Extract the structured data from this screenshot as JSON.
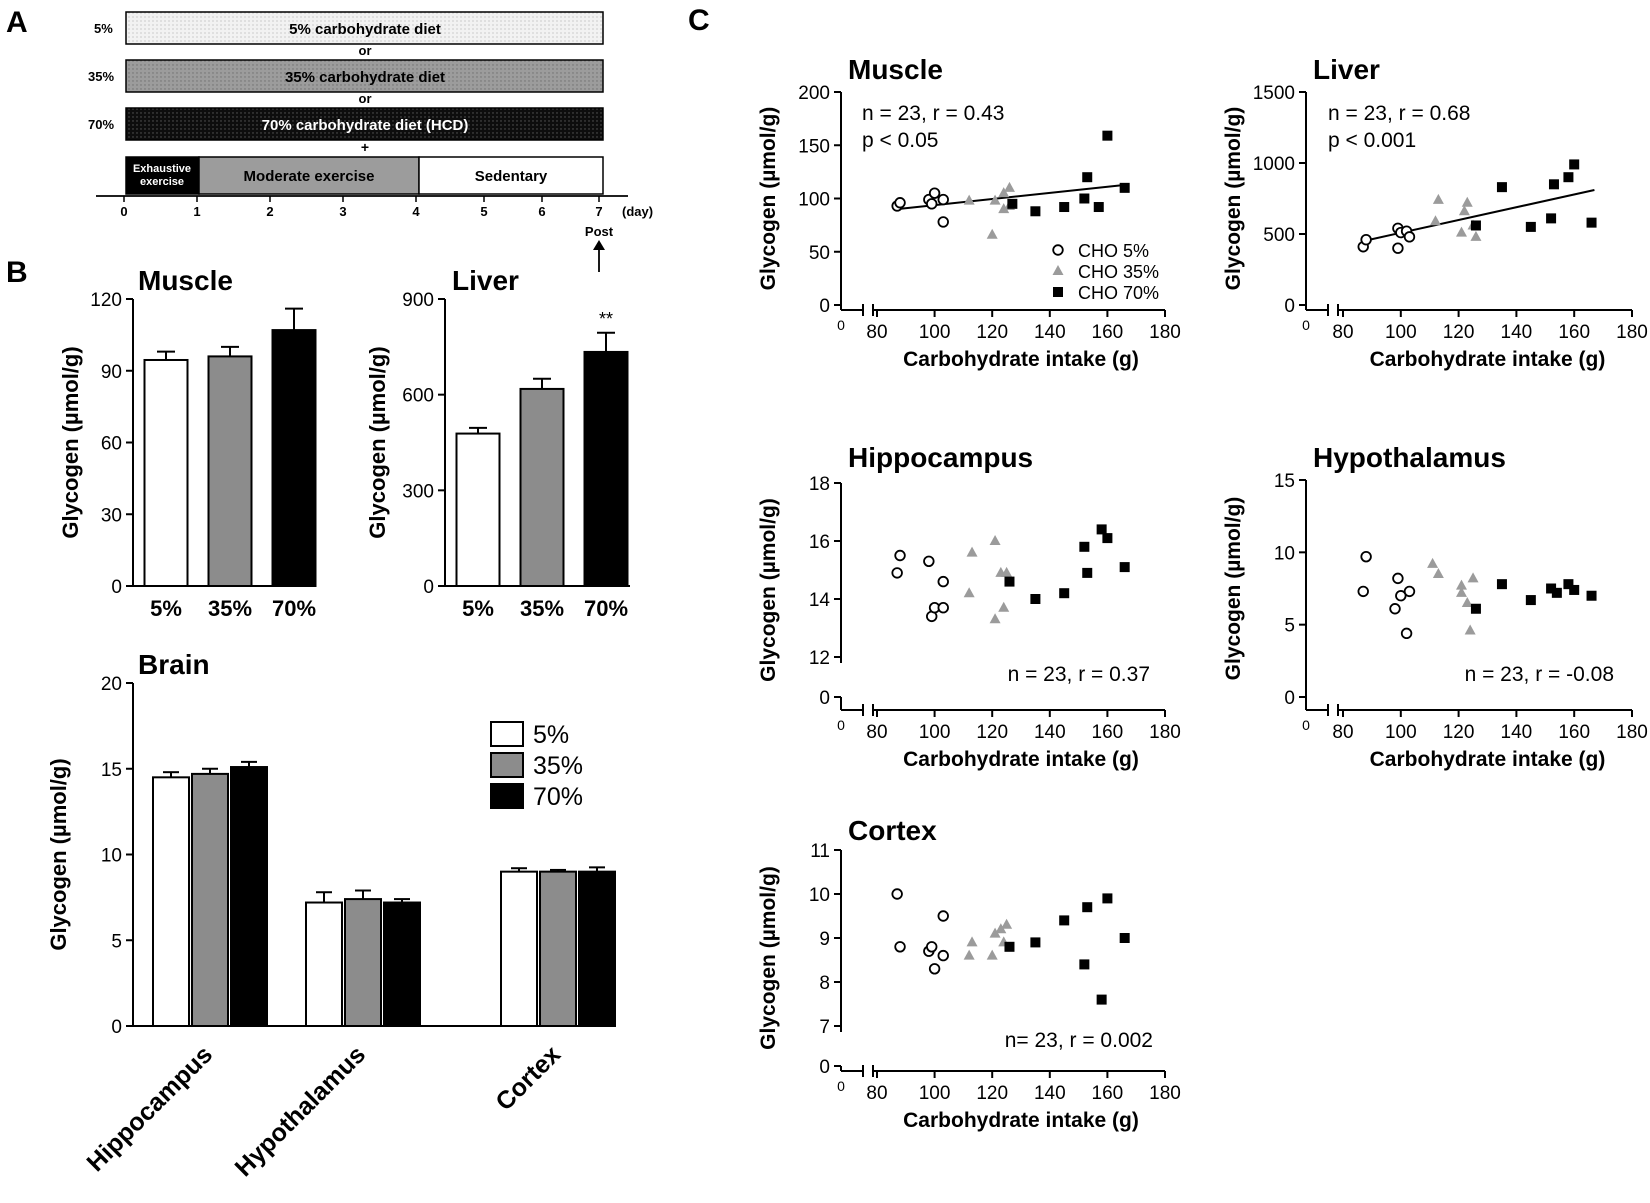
{
  "panel_labels": {
    "a": "A",
    "b": "B",
    "c": "C"
  },
  "colors": {
    "five": "#ffffff",
    "thirtyfive": "#8c8c8c",
    "seventy": "#000000",
    "light_fill": "#eeeeee",
    "mid_fill": "#999999",
    "dark_fill": "#1a1a1a",
    "grey_mark": "#9b9b9b"
  },
  "protocol": {
    "diets": [
      {
        "tag": "5%",
        "label": "5% carbohydrate diet"
      },
      {
        "tag": "35%",
        "label": "35% carbohydrate diet"
      },
      {
        "tag": "70%",
        "label": "70% carbohydrate diet (HCD)"
      }
    ],
    "or_label": "or",
    "plus_label": "+",
    "phases": [
      "Exhaustive exercise",
      "Moderate exercise",
      "Sedentary"
    ],
    "day_ticks": [
      "0",
      "1",
      "2",
      "3",
      "4",
      "5",
      "6",
      "7"
    ],
    "day_unit": "(day)",
    "post_label": "Post"
  },
  "chart_data": [
    {
      "id": "b_muscle",
      "type": "bar",
      "title": "Muscle",
      "ylabel": "Glycogen (µmol/g)",
      "categories": [
        "5%",
        "35%",
        "70%"
      ],
      "values": [
        94.5,
        96,
        107
      ],
      "errors": [
        3.5,
        4,
        9
      ],
      "ylim": [
        0,
        120
      ],
      "yticks": [
        "0",
        "30",
        "60",
        "90",
        "120"
      ],
      "annotation": ""
    },
    {
      "id": "b_liver",
      "type": "bar",
      "title": "Liver",
      "ylabel": "Glycogen (µmol/g)",
      "categories": [
        "5%",
        "35%",
        "70%"
      ],
      "values": [
        478,
        618,
        734
      ],
      "errors": [
        18,
        32,
        60
      ],
      "ylim": [
        0,
        900
      ],
      "yticks": [
        "0",
        "300",
        "600",
        "900"
      ],
      "annotation": "**"
    },
    {
      "id": "b_brain",
      "type": "bar",
      "title": "Brain",
      "ylabel": "Glycogen (µmol/g)",
      "categories": [
        "Hippocampus",
        "Hypothalamus",
        "Cortex"
      ],
      "series": [
        {
          "name": "5%",
          "values": [
            14.5,
            7.2,
            9.0
          ],
          "errors": [
            0.3,
            0.6,
            0.2
          ]
        },
        {
          "name": "35%",
          "values": [
            14.7,
            7.4,
            9.0
          ],
          "errors": [
            0.3,
            0.5,
            0.1
          ]
        },
        {
          "name": "70%",
          "values": [
            15.1,
            7.2,
            9.0
          ],
          "errors": [
            0.3,
            0.2,
            0.25
          ]
        }
      ],
      "ylim": [
        0,
        20
      ],
      "yticks": [
        "0",
        "5",
        "10",
        "15",
        "20"
      ],
      "legend": [
        "5%",
        "35%",
        "70%"
      ]
    },
    {
      "id": "c_muscle",
      "type": "scatter",
      "title": "Muscle",
      "xlabel": "Carbohydrate intake (g)",
      "ylabel": "Glycogen (µmol/g)",
      "xlim": [
        80,
        180
      ],
      "xticks": [
        "80",
        "100",
        "120",
        "140",
        "160",
        "180"
      ],
      "ylim": [
        0,
        200
      ],
      "yticks": [
        "0",
        "50",
        "100",
        "150",
        "200"
      ],
      "stats": [
        "n = 23, r = 0.43",
        "p < 0.05"
      ],
      "fit": [
        [
          87,
          90
        ],
        [
          167,
          113
        ]
      ],
      "legend": [
        "CHO 5%",
        "CHO 35%",
        "CHO 70%"
      ],
      "series": [
        {
          "name": "CHO 5%",
          "x": [
            87,
            88,
            98,
            99,
            100,
            103,
            103
          ],
          "y": [
            93,
            96,
            99,
            95,
            105,
            78,
            99
          ]
        },
        {
          "name": "CHO 35%",
          "x": [
            112,
            120,
            121,
            124,
            124,
            126,
            126
          ],
          "y": [
            98,
            66,
            98,
            90,
            105,
            93,
            110
          ]
        },
        {
          "name": "CHO 70%",
          "x": [
            127,
            135,
            145,
            152,
            153,
            157,
            160,
            166
          ],
          "y": [
            95,
            88,
            92,
            100,
            120,
            92,
            159,
            110
          ]
        }
      ]
    },
    {
      "id": "c_liver",
      "type": "scatter",
      "title": "Liver",
      "xlabel": "Carbohydrate intake (g)",
      "ylabel": "Glycogen (µmol/g)",
      "xlim": [
        80,
        180
      ],
      "xticks": [
        "80",
        "100",
        "120",
        "140",
        "160",
        "180"
      ],
      "ylim": [
        0,
        1500
      ],
      "yticks": [
        "0",
        "500",
        "1000",
        "1500"
      ],
      "stats": [
        "n = 23, r = 0.68",
        "p < 0.001"
      ],
      "fit": [
        [
          87,
          450
        ],
        [
          167,
          810
        ]
      ],
      "series": [
        {
          "name": "CHO 5%",
          "x": [
            87,
            88,
            99,
            99,
            100,
            102,
            103
          ],
          "y": [
            410,
            460,
            400,
            540,
            510,
            520,
            480
          ]
        },
        {
          "name": "CHO 35%",
          "x": [
            112,
            113,
            121,
            122,
            123,
            125,
            126
          ],
          "y": [
            590,
            740,
            510,
            660,
            720,
            560,
            480
          ]
        },
        {
          "name": "CHO 70%",
          "x": [
            126,
            135,
            145,
            152,
            153,
            158,
            160,
            166
          ],
          "y": [
            560,
            830,
            550,
            610,
            850,
            900,
            990,
            580
          ]
        }
      ]
    },
    {
      "id": "c_hippocampus",
      "type": "scatter",
      "title": "Hippocampus",
      "xlabel": "Carbohydrate intake (g)",
      "ylabel": "Glycogen (µmol/g)",
      "xlim": [
        80,
        180
      ],
      "xticks": [
        "80",
        "100",
        "120",
        "140",
        "160",
        "180"
      ],
      "ylim": [
        12,
        18
      ],
      "yticks": [
        "12",
        "14",
        "16",
        "18"
      ],
      "zero_label": "0",
      "stats": [
        "n = 23, r = 0.37"
      ],
      "series": [
        {
          "name": "CHO 5%",
          "x": [
            87,
            88,
            98,
            99,
            100,
            103,
            103
          ],
          "y": [
            14.9,
            15.5,
            15.3,
            13.4,
            13.7,
            14.6,
            13.7
          ]
        },
        {
          "name": "CHO 35%",
          "x": [
            112,
            113,
            121,
            121,
            123,
            124,
            125
          ],
          "y": [
            14.2,
            15.6,
            13.3,
            16.0,
            14.9,
            13.7,
            14.9
          ]
        },
        {
          "name": "CHO 70%",
          "x": [
            126,
            135,
            145,
            152,
            153,
            158,
            160,
            166
          ],
          "y": [
            14.6,
            14.0,
            14.2,
            15.8,
            14.9,
            16.4,
            16.1,
            15.1
          ]
        }
      ]
    },
    {
      "id": "c_hypothalamus",
      "type": "scatter",
      "title": "Hypothalamus",
      "xlabel": "Carbohydrate intake (g)",
      "ylabel": "Glycogen (µmol/g)",
      "xlim": [
        80,
        180
      ],
      "xticks": [
        "80",
        "100",
        "120",
        "140",
        "160",
        "180"
      ],
      "ylim": [
        0,
        15
      ],
      "yticks": [
        "0",
        "5",
        "10",
        "15"
      ],
      "stats": [
        "n = 23, r = -0.08"
      ],
      "series": [
        {
          "name": "CHO 5%",
          "x": [
            87,
            88,
            98,
            99,
            100,
            102,
            103
          ],
          "y": [
            7.3,
            9.7,
            6.1,
            8.2,
            7.0,
            4.4,
            7.3
          ]
        },
        {
          "name": "CHO 35%",
          "x": [
            111,
            113,
            121,
            121,
            123,
            124,
            125
          ],
          "y": [
            9.2,
            8.5,
            7.2,
            7.7,
            6.5,
            4.6,
            8.2
          ]
        },
        {
          "name": "CHO 70%",
          "x": [
            126,
            135,
            145,
            152,
            154,
            158,
            160,
            166
          ],
          "y": [
            6.1,
            7.8,
            6.7,
            7.5,
            7.2,
            7.8,
            7.4,
            7.0
          ]
        }
      ]
    },
    {
      "id": "c_cortex",
      "type": "scatter",
      "title": "Cortex",
      "xlabel": "Carbohydrate intake (g)",
      "ylabel": "Glycogen (µmol/g)",
      "xlim": [
        80,
        180
      ],
      "xticks": [
        "80",
        "100",
        "120",
        "140",
        "160",
        "180"
      ],
      "ylim": [
        7,
        11
      ],
      "yticks": [
        "7",
        "8",
        "9",
        "10",
        "11"
      ],
      "zero_label": "0",
      "stats": [
        "n= 23, r = 0.002"
      ],
      "series": [
        {
          "name": "CHO 5%",
          "x": [
            87,
            88,
            98,
            99,
            100,
            103,
            103
          ],
          "y": [
            10.0,
            8.8,
            8.7,
            8.8,
            8.3,
            9.5,
            8.6
          ]
        },
        {
          "name": "CHO 35%",
          "x": [
            112,
            113,
            120,
            121,
            123,
            124,
            125
          ],
          "y": [
            8.6,
            8.9,
            8.6,
            9.1,
            9.2,
            8.9,
            9.3
          ]
        },
        {
          "name": "CHO 70%",
          "x": [
            126,
            135,
            145,
            152,
            153,
            158,
            160,
            166
          ],
          "y": [
            8.8,
            8.9,
            9.4,
            8.4,
            9.7,
            7.6,
            9.9,
            9.0
          ]
        }
      ]
    }
  ]
}
